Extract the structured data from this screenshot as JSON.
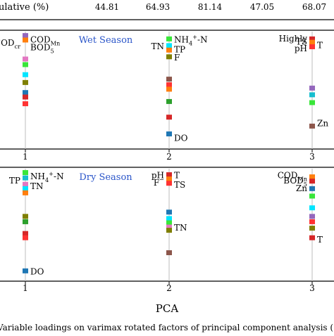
{
  "header_row": {
    "label": "ulative (%)",
    "values": [
      "44.81",
      "64.93",
      "81.14",
      "47.05",
      "68.07"
    ]
  },
  "caption": "Variable loadings on varimax rotated factors of principal component analysis (",
  "xlabel": "PCA",
  "colors": {
    "axis": "#000000",
    "stem": "#bdbdbd",
    "season_label": "#2a55c9",
    "palette": [
      "#d62728",
      "#ff7f0e",
      "#2ca02c",
      "#17becf",
      "#1f77b4",
      "#9467bd",
      "#e377c2",
      "#8c564b",
      "#7f7f00",
      "#00e5ff",
      "#39e639",
      "#ff3333"
    ]
  },
  "chart_data": [
    {
      "type": "scatter",
      "title": "Wet Season",
      "x_categories": [
        "1",
        "2",
        "3"
      ],
      "ylim": [
        0,
        1
      ],
      "annotations": [
        {
          "text": "CODcr",
          "pca": 1,
          "y": 0.93
        },
        {
          "text": "CODMn",
          "pca": 1,
          "y": 0.96
        },
        {
          "text": "BOD5",
          "pca": 1,
          "y": 0.89
        },
        {
          "text": "NH4+-N",
          "pca": 2,
          "y": 0.96
        },
        {
          "text": "TN",
          "pca": 2,
          "y": 0.9
        },
        {
          "text": "TP",
          "pca": 2,
          "y": 0.87
        },
        {
          "text": "F",
          "pca": 2,
          "y": 0.8
        },
        {
          "text": "DO",
          "pca": 2,
          "y": 0.08
        },
        {
          "text": "Highly",
          "pca": 3,
          "y": 0.97
        },
        {
          "text": "TS",
          "pca": 3,
          "y": 0.94
        },
        {
          "text": "T",
          "pca": 3,
          "y": 0.91
        },
        {
          "text": "pH",
          "pca": 3,
          "y": 0.88
        },
        {
          "text": "Zn",
          "pca": 3,
          "y": 0.21
        }
      ],
      "points": [
        {
          "pca": 1,
          "y": 0.99,
          "color": "#9467bd"
        },
        {
          "pca": 1,
          "y": 0.95,
          "color": "#ff7f0e"
        },
        {
          "pca": 1,
          "y": 0.78,
          "color": "#e377c2"
        },
        {
          "pca": 1,
          "y": 0.73,
          "color": "#39e639"
        },
        {
          "pca": 1,
          "y": 0.64,
          "color": "#00e5ff"
        },
        {
          "pca": 1,
          "y": 0.57,
          "color": "#7f7f00"
        },
        {
          "pca": 1,
          "y": 0.48,
          "color": "#1f77b4"
        },
        {
          "pca": 1,
          "y": 0.44,
          "color": "#d62728"
        },
        {
          "pca": 1,
          "y": 0.38,
          "color": "#ff3333"
        },
        {
          "pca": 2,
          "y": 0.96,
          "color": "#39e639"
        },
        {
          "pca": 2,
          "y": 0.9,
          "color": "#00e5ff"
        },
        {
          "pca": 2,
          "y": 0.86,
          "color": "#ff7f0e"
        },
        {
          "pca": 2,
          "y": 0.8,
          "color": "#7f7f00"
        },
        {
          "pca": 2,
          "y": 0.6,
          "color": "#8c564b"
        },
        {
          "pca": 2,
          "y": 0.55,
          "color": "#ff3333"
        },
        {
          "pca": 2,
          "y": 0.51,
          "color": "#ff7f0e"
        },
        {
          "pca": 2,
          "y": 0.4,
          "color": "#2ca02c"
        },
        {
          "pca": 2,
          "y": 0.26,
          "color": "#d62728"
        },
        {
          "pca": 2,
          "y": 0.11,
          "color": "#1f77b4"
        },
        {
          "pca": 3,
          "y": 0.96,
          "color": "#d62728"
        },
        {
          "pca": 3,
          "y": 0.93,
          "color": "#ff7f0e"
        },
        {
          "pca": 3,
          "y": 0.89,
          "color": "#ff3333"
        },
        {
          "pca": 3,
          "y": 0.52,
          "color": "#9467bd"
        },
        {
          "pca": 3,
          "y": 0.46,
          "color": "#17becf"
        },
        {
          "pca": 3,
          "y": 0.39,
          "color": "#39e639"
        },
        {
          "pca": 3,
          "y": 0.18,
          "color": "#8c564b"
        }
      ]
    },
    {
      "type": "scatter",
      "title": "Dry Season",
      "x_categories": [
        "1",
        "2",
        "3"
      ],
      "ylim": [
        0,
        1
      ],
      "annotations": [
        {
          "text": "TP",
          "pca": 1,
          "y": 0.92
        },
        {
          "text": "NH4+-N",
          "pca": 1,
          "y": 0.96
        },
        {
          "text": "TN",
          "pca": 1,
          "y": 0.87
        },
        {
          "text": "DO",
          "pca": 1,
          "y": 0.07
        },
        {
          "text": "pH",
          "pca": 2,
          "y": 0.97
        },
        {
          "text": "T",
          "pca": 2,
          "y": 0.97
        },
        {
          "text": "F-",
          "pca": 2,
          "y": 0.9
        },
        {
          "text": "TS",
          "pca": 2,
          "y": 0.88
        },
        {
          "text": "TN",
          "pca": 2,
          "y": 0.48
        },
        {
          "text": "CODMn",
          "pca": 3,
          "y": 0.97
        },
        {
          "text": "BOD5",
          "pca": 3,
          "y": 0.92
        },
        {
          "text": "Zn",
          "pca": 3,
          "y": 0.85
        },
        {
          "text": "T",
          "pca": 3,
          "y": 0.37
        }
      ],
      "points": [
        {
          "pca": 1,
          "y": 0.99,
          "color": "#39e639"
        },
        {
          "pca": 1,
          "y": 0.94,
          "color": "#17becf"
        },
        {
          "pca": 1,
          "y": 0.88,
          "color": "#e377c2"
        },
        {
          "pca": 1,
          "y": 0.84,
          "color": "#00e5ff"
        },
        {
          "pca": 1,
          "y": 0.8,
          "color": "#ff7f0e"
        },
        {
          "pca": 1,
          "y": 0.58,
          "color": "#7f7f00"
        },
        {
          "pca": 1,
          "y": 0.53,
          "color": "#2ca02c"
        },
        {
          "pca": 1,
          "y": 0.42,
          "color": "#d62728"
        },
        {
          "pca": 1,
          "y": 0.38,
          "color": "#ff3333"
        },
        {
          "pca": 1,
          "y": 0.07,
          "color": "#1f77b4"
        },
        {
          "pca": 2,
          "y": 0.97,
          "color": "#d62728"
        },
        {
          "pca": 2,
          "y": 0.93,
          "color": "#ff7f0e"
        },
        {
          "pca": 2,
          "y": 0.89,
          "color": "#ff3333"
        },
        {
          "pca": 2,
          "y": 0.62,
          "color": "#1f77b4"
        },
        {
          "pca": 2,
          "y": 0.56,
          "color": "#00e5ff"
        },
        {
          "pca": 2,
          "y": 0.52,
          "color": "#39e639"
        },
        {
          "pca": 2,
          "y": 0.48,
          "color": "#e377c2"
        },
        {
          "pca": 2,
          "y": 0.45,
          "color": "#7f7f00"
        },
        {
          "pca": 2,
          "y": 0.24,
          "color": "#8c564b"
        },
        {
          "pca": 3,
          "y": 0.95,
          "color": "#ff7f0e"
        },
        {
          "pca": 3,
          "y": 0.91,
          "color": "#d62728"
        },
        {
          "pca": 3,
          "y": 0.84,
          "color": "#1f77b4"
        },
        {
          "pca": 3,
          "y": 0.77,
          "color": "#39e639"
        },
        {
          "pca": 3,
          "y": 0.66,
          "color": "#00e5ff"
        },
        {
          "pca": 3,
          "y": 0.58,
          "color": "#9467bd"
        },
        {
          "pca": 3,
          "y": 0.53,
          "color": "#ff3333"
        },
        {
          "pca": 3,
          "y": 0.47,
          "color": "#7f7f00"
        },
        {
          "pca": 3,
          "y": 0.38,
          "color": "#d62728"
        }
      ]
    }
  ]
}
